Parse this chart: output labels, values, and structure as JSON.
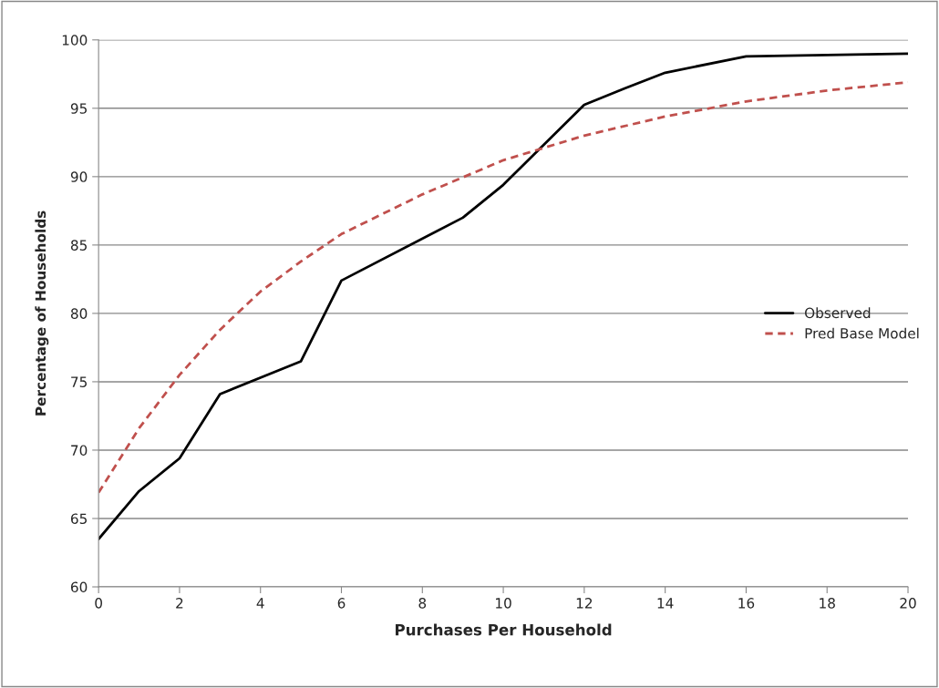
{
  "chart_data": {
    "type": "line",
    "xlabel": "Purchases Per Household",
    "ylabel": "Percentage of Households",
    "series": [
      {
        "name": "Observed",
        "color": "#000000",
        "marker": "none",
        "line_style": "solid",
        "x": [
          0,
          1,
          2,
          3,
          5,
          6,
          9,
          10,
          12,
          13,
          14,
          16,
          20
        ],
        "values": [
          63.5,
          67.0,
          69.4,
          74.1,
          76.5,
          82.4,
          87.0,
          89.4,
          95.25,
          96.45,
          97.6,
          98.8,
          99.0
        ]
      },
      {
        "name": "Pred Base Model",
        "color": "#c0504d",
        "marker": "none",
        "line_style": "dashed",
        "x": [
          0,
          1,
          2,
          3,
          4,
          5,
          6,
          8,
          10,
          12,
          14,
          16,
          18,
          20
        ],
        "values": [
          66.9,
          71.6,
          75.5,
          78.8,
          81.6,
          83.8,
          85.8,
          88.7,
          91.2,
          93.0,
          94.4,
          95.5,
          96.3,
          96.9
        ]
      }
    ],
    "xlim": [
      0,
      20
    ],
    "xticks": [
      0,
      2,
      4,
      6,
      8,
      10,
      12,
      14,
      16,
      18,
      20
    ],
    "ylim": [
      60,
      100
    ],
    "yticks": [
      60,
      65,
      70,
      75,
      80,
      85,
      90,
      95,
      100
    ],
    "grid": "y",
    "legend": "right"
  }
}
